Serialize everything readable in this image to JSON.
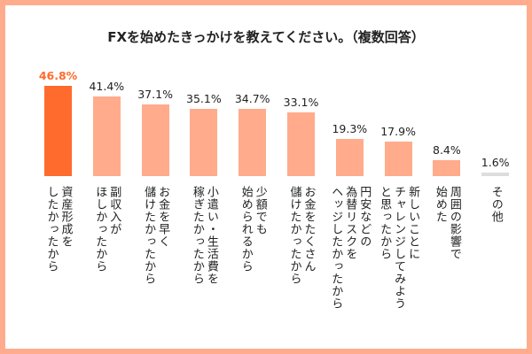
{
  "chart_data": {
    "type": "bar",
    "title": "FXを始めたきっかけを教えてください。（複数回答）",
    "categories": [
      "資産形成を\nしたかったから",
      "副収入が\nほしかったから",
      "お金を早く\n儲けたかったから",
      "小遣い・生活費を\n稼ぎたかったから",
      "少額でも\n始められるから",
      "お金をたくさん\n儲けたかったから",
      "円安などの\n為替リスクを\nヘッジしたかったから",
      "新しいことに\nチャレンジしてみよう\nと思ったから",
      "周囲の影響で\n始めた",
      "その他"
    ],
    "values": [
      46.8,
      41.4,
      37.1,
      35.1,
      34.7,
      33.1,
      19.3,
      17.9,
      8.4,
      1.6
    ],
    "value_labels": [
      "46.8%",
      "41.4%",
      "37.1%",
      "35.1%",
      "34.7%",
      "33.1%",
      "19.3%",
      "17.9%",
      "8.4%",
      "1.6%"
    ],
    "unit": "%",
    "ylim": [
      0,
      50
    ],
    "grid": false,
    "colors": {
      "highlight": "#ff6b2c",
      "default": "#ffab8c",
      "other": "#dddddd",
      "highlight_label": "#ff6b2c",
      "frame": "#ffac8e"
    }
  }
}
